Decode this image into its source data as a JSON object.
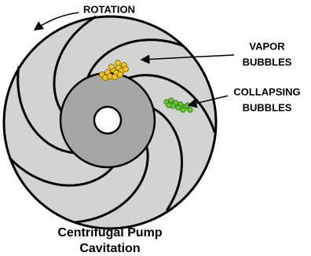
{
  "labels": {
    "rotation": "ROTATION",
    "vapor_bubbles": [
      "VAPOR",
      "BUBBLES"
    ],
    "collapsing_bubbles": [
      "COLLAPSING",
      "BUBBLES"
    ]
  },
  "title": [
    "Centrifugal Pump",
    "Cavitation"
  ]
}
